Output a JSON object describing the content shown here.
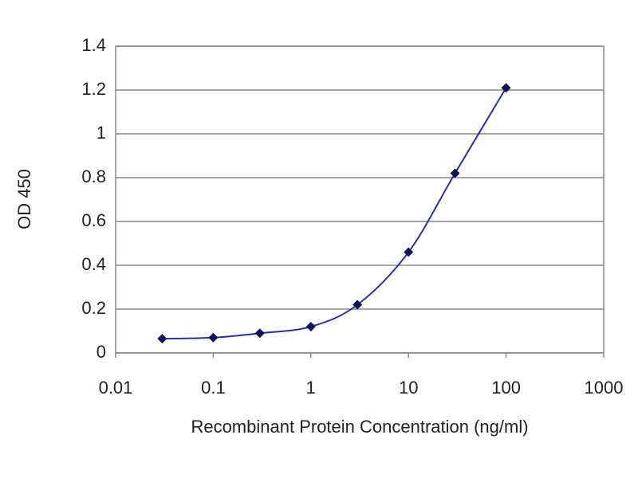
{
  "chart_data": {
    "type": "line",
    "x_label": "Recombinant Protein Concentration (ng/ml)",
    "y_label": "OD 450",
    "x": [
      0.03,
      0.1,
      0.3,
      1,
      3,
      10,
      30,
      100
    ],
    "series": [
      {
        "color": "#2e2e9e",
        "marker_color": "#10105a",
        "values": [
          0.065,
          0.07,
          0.09,
          0.12,
          0.22,
          0.46,
          0.82,
          1.21
        ]
      }
    ],
    "xlim": [
      0.01,
      1000
    ],
    "xticks": [
      0.01,
      0.1,
      1,
      10,
      100,
      1000
    ],
    "xscale": "log",
    "ylim": [
      0,
      1.4
    ],
    "yticks": [
      0,
      0.2,
      0.4,
      0.6,
      0.8,
      1,
      1.2,
      1.4
    ],
    "grid": true
  }
}
